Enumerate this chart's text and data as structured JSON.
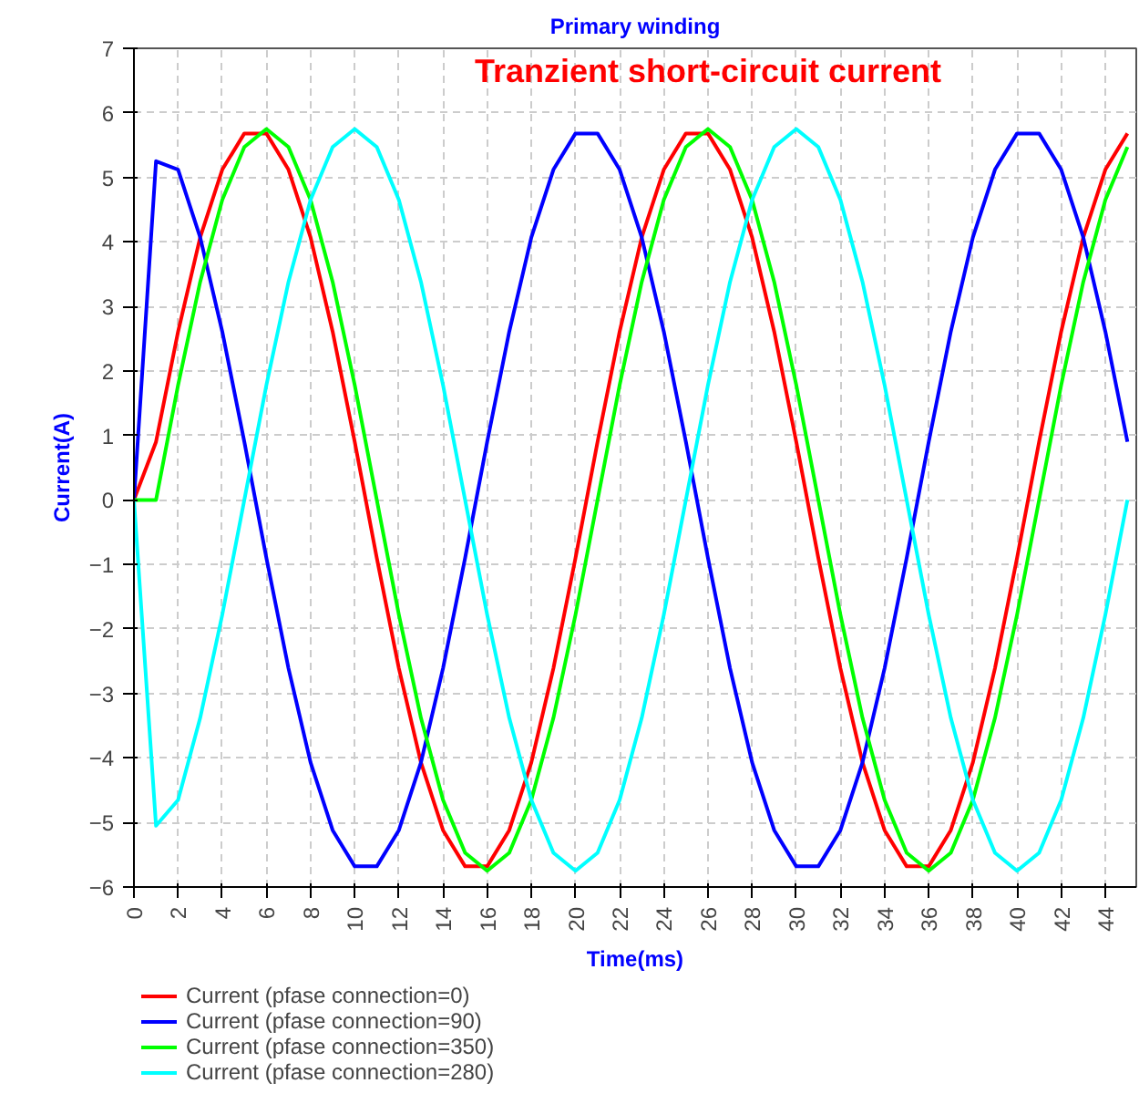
{
  "chart_data": {
    "type": "line",
    "title": "Primary winding",
    "xlabel": "Time(ms)",
    "ylabel": "Current(A)",
    "annotations": [
      "Tranzient short-circuit current"
    ],
    "x": [
      0,
      1,
      2,
      3,
      4,
      5,
      6,
      7,
      8,
      9,
      10,
      11,
      12,
      13,
      14,
      15,
      16,
      17,
      18,
      19,
      20,
      21,
      22,
      23,
      24,
      25,
      26,
      27,
      28,
      29,
      30,
      31,
      32,
      33,
      34,
      35,
      36,
      37,
      38,
      39,
      40,
      41,
      42,
      43,
      44,
      45
    ],
    "series": [
      {
        "name": "Current (pfase connection=0)",
        "color": "#ff0000",
        "values": [
          0,
          0.9,
          2.61,
          4.07,
          5.12,
          5.68,
          5.68,
          5.12,
          4.07,
          2.61,
          0.9,
          -0.9,
          -2.61,
          -4.07,
          -5.12,
          -5.68,
          -5.68,
          -5.12,
          -4.07,
          -2.61,
          -0.9,
          0.9,
          2.61,
          4.07,
          5.12,
          5.68,
          5.68,
          5.12,
          4.07,
          2.61,
          0.9,
          -0.9,
          -2.61,
          -4.07,
          -5.12,
          -5.68,
          -5.68,
          -5.12,
          -4.07,
          -2.61,
          -0.9,
          0.9,
          2.61,
          4.07,
          5.12,
          5.68
        ]
      },
      {
        "name": "Current (pfase connection=90)",
        "color": "#0000ff",
        "values": [
          0,
          5.25,
          5.12,
          4.07,
          2.61,
          0.9,
          -0.9,
          -2.61,
          -4.07,
          -5.12,
          -5.68,
          -5.68,
          -5.12,
          -4.07,
          -2.61,
          -0.9,
          0.9,
          2.61,
          4.07,
          5.12,
          5.68,
          5.68,
          5.12,
          4.07,
          2.61,
          0.9,
          -0.9,
          -2.61,
          -4.07,
          -5.12,
          -5.68,
          -5.68,
          -5.12,
          -4.07,
          -2.61,
          -0.9,
          0.9,
          2.61,
          4.07,
          5.12,
          5.68,
          5.68,
          5.12,
          4.07,
          2.61,
          0.9
        ]
      },
      {
        "name": "Current (pfase connection=350)",
        "color": "#00ff00",
        "values": [
          0,
          0,
          1.78,
          3.38,
          4.65,
          5.47,
          5.75,
          5.47,
          4.65,
          3.38,
          1.78,
          0,
          -1.78,
          -3.38,
          -4.65,
          -5.47,
          -5.75,
          -5.47,
          -4.65,
          -3.38,
          -1.78,
          0,
          1.78,
          3.38,
          4.65,
          5.47,
          5.75,
          5.47,
          4.65,
          3.38,
          1.78,
          0,
          -1.78,
          -3.38,
          -4.65,
          -5.47,
          -5.75,
          -5.47,
          -4.65,
          -3.38,
          -1.78,
          0,
          1.78,
          3.38,
          4.65,
          5.47
        ]
      },
      {
        "name": "Current (pfase connection=280)",
        "color": "#00ffff",
        "values": [
          0,
          -5.05,
          -4.65,
          -3.38,
          -1.78,
          0,
          1.78,
          3.38,
          4.65,
          5.47,
          5.75,
          5.47,
          4.65,
          3.38,
          1.78,
          0,
          -1.78,
          -3.38,
          -4.65,
          -5.47,
          -5.75,
          -5.47,
          -4.65,
          -3.38,
          -1.78,
          0,
          1.78,
          3.38,
          4.65,
          5.47,
          5.75,
          5.47,
          4.65,
          3.38,
          1.78,
          0,
          -1.78,
          -3.38,
          -4.65,
          -5.47,
          -5.75,
          -5.47,
          -4.65,
          -3.38,
          -1.78,
          0
        ]
      }
    ],
    "xlim": [
      0,
      45.4
    ],
    "ylim": [
      -6,
      7
    ],
    "xticks": [
      0,
      2,
      4,
      6,
      8,
      10,
      12,
      14,
      16,
      18,
      20,
      22,
      24,
      26,
      28,
      30,
      32,
      34,
      36,
      38,
      40,
      42,
      44
    ],
    "yticks": [
      -6,
      -5,
      -4,
      -3,
      -2,
      -1,
      0,
      1,
      2,
      3,
      4,
      5,
      6,
      7
    ],
    "grid": true,
    "legend": "bottom",
    "marker": "none",
    "line_style": "solid"
  }
}
